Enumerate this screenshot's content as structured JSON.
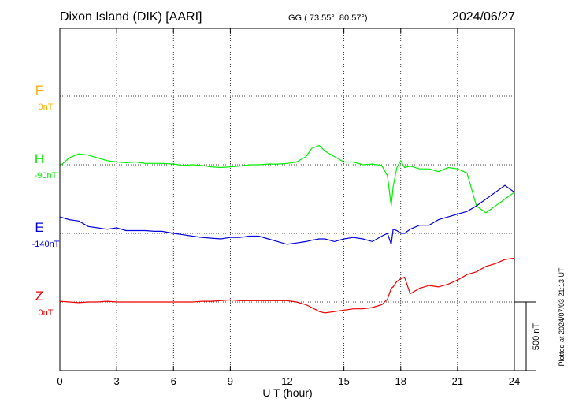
{
  "header": {
    "station": "Dixon Island (DIK)  [AARI]",
    "coords": "GG ( 73.55°,  80.57°)",
    "date": "2024/06/27"
  },
  "side_note": "Plotted at 2024/07/03 21:13 UT",
  "scale_label": "500 nT",
  "chart_data": {
    "type": "line",
    "title": "Dixon Island (DIK)  [AARI]",
    "xlabel": "U T (hour)",
    "xlim": [
      0,
      24
    ],
    "xticks": [
      "0",
      "3",
      "6",
      "9",
      "12",
      "15",
      "18",
      "21",
      "24"
    ],
    "grid": true,
    "scale_bar_nT": 500,
    "series": [
      {
        "name": "F",
        "baseline_label": "0nT",
        "color": "#ffb000",
        "empty": true,
        "x": [],
        "y": []
      },
      {
        "name": "H",
        "baseline_label": "-90nT",
        "color": "#00ee00",
        "x": [
          0,
          0.5,
          1,
          1.5,
          2,
          2.5,
          3,
          3.5,
          4,
          4.5,
          5,
          5.4,
          6,
          6.5,
          7,
          7.5,
          8,
          8.5,
          9,
          9.5,
          10,
          10.5,
          11,
          11.5,
          12,
          12.5,
          13,
          13.3,
          13.7,
          14,
          14.5,
          15,
          15.5,
          16,
          16.5,
          17,
          17.3,
          17.5,
          17.6,
          17.8,
          18,
          18.2,
          18.5,
          19,
          19.5,
          20,
          20.5,
          21,
          21.5,
          22,
          22.5,
          23,
          23.5,
          24
        ],
        "y": [
          -10,
          50,
          80,
          70,
          50,
          30,
          20,
          15,
          20,
          10,
          10,
          10,
          5,
          -5,
          0,
          -5,
          -15,
          -20,
          -15,
          -10,
          0,
          0,
          5,
          5,
          10,
          20,
          60,
          120,
          140,
          100,
          60,
          20,
          20,
          0,
          5,
          -5,
          -80,
          -300,
          -160,
          -20,
          30,
          -20,
          -10,
          -30,
          -30,
          -50,
          -20,
          -30,
          -60,
          -300,
          -350,
          -300,
          -250,
          -200
        ]
      },
      {
        "name": "E",
        "baseline_label": "-140nT",
        "color": "#0000dd",
        "x": [
          0,
          0.5,
          1,
          1.5,
          2,
          2.5,
          3,
          3.5,
          4,
          4.5,
          5,
          5.4,
          6,
          6.5,
          7,
          7.5,
          8,
          8.5,
          9,
          9.5,
          10,
          10.5,
          11,
          11.5,
          12,
          12.5,
          13,
          13.3,
          13.7,
          14,
          14.5,
          15,
          15.5,
          16,
          16.5,
          17,
          17.3,
          17.5,
          17.6,
          17.8,
          18,
          18.2,
          18.5,
          19,
          19.5,
          20,
          20.5,
          21,
          21.5,
          22,
          22.5,
          23,
          23.5,
          24
        ],
        "y": [
          120,
          100,
          90,
          50,
          40,
          30,
          40,
          20,
          20,
          20,
          15,
          15,
          0,
          -10,
          -20,
          -30,
          -35,
          -40,
          -30,
          -30,
          -20,
          -20,
          -40,
          -60,
          -80,
          -70,
          -60,
          -50,
          -40,
          -40,
          -60,
          -40,
          -30,
          -40,
          -60,
          -20,
          0,
          -80,
          30,
          20,
          0,
          0,
          30,
          60,
          60,
          100,
          120,
          140,
          160,
          200,
          250,
          300,
          350,
          300
        ]
      },
      {
        "name": "Z",
        "baseline_label": "0nT",
        "color": "#ee0000",
        "x": [
          0,
          0.5,
          1,
          1.5,
          2,
          2.5,
          3,
          3.5,
          4,
          4.5,
          5,
          5.4,
          6,
          6.5,
          7,
          7.5,
          8,
          8.5,
          9,
          9.5,
          10,
          10.5,
          11,
          11.5,
          12,
          12.5,
          13,
          13.3,
          13.7,
          14,
          14.5,
          15,
          15.5,
          16,
          16.5,
          17,
          17.3,
          17.5,
          17.6,
          17.8,
          18,
          18.2,
          18.5,
          19,
          19.5,
          20,
          20.5,
          21,
          21.5,
          22,
          22.5,
          23,
          23.5,
          24
        ],
        "y": [
          5,
          0,
          -5,
          0,
          0,
          5,
          0,
          0,
          0,
          0,
          0,
          0,
          0,
          0,
          0,
          5,
          5,
          10,
          15,
          10,
          10,
          10,
          10,
          10,
          10,
          0,
          -20,
          -40,
          -70,
          -80,
          -70,
          -60,
          -50,
          -50,
          -40,
          -20,
          20,
          100,
          110,
          150,
          170,
          180,
          60,
          100,
          120,
          110,
          130,
          160,
          200,
          220,
          260,
          280,
          310,
          320
        ]
      }
    ]
  }
}
